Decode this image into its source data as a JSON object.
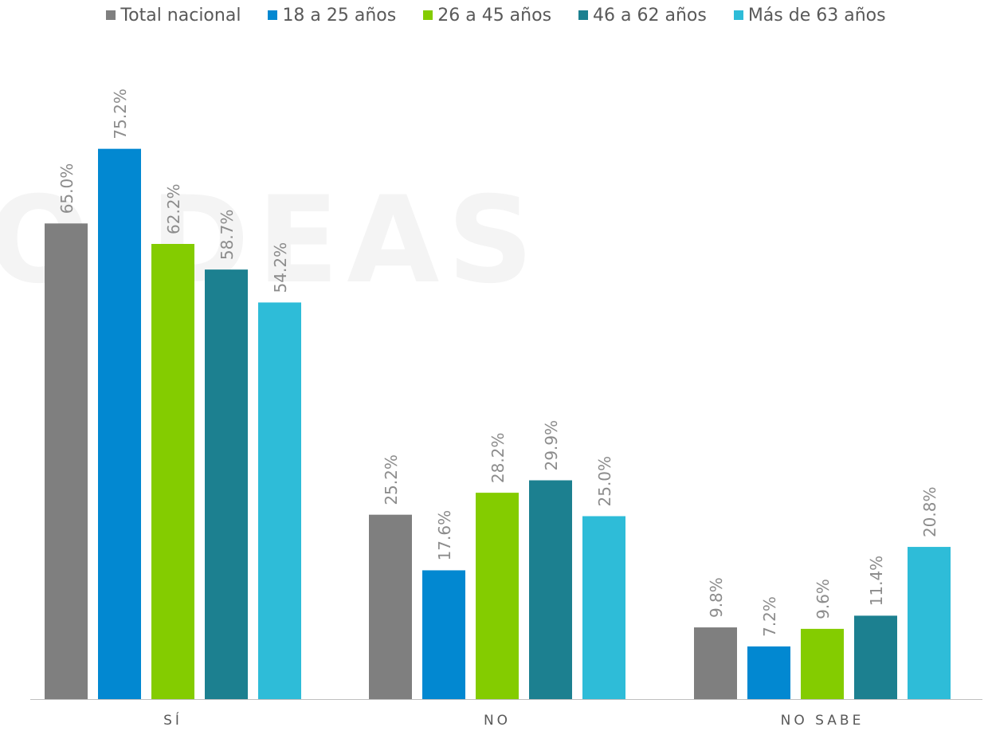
{
  "watermark_text": "OIDEAS",
  "colors": {
    "axis": "#bfbfbf",
    "label": "#8c8c8c",
    "category_label": "#595959"
  },
  "chart_data": {
    "type": "bar",
    "categories": [
      "SÍ",
      "NO",
      "NO SABE"
    ],
    "series": [
      {
        "name": "Total nacional",
        "color": "#7f7f7f",
        "values": [
          65.0,
          25.2,
          9.8
        ],
        "labels": [
          "65.0%",
          "25.2%",
          "9.8%"
        ]
      },
      {
        "name": "18 a 25 años",
        "color": "#0288d1",
        "values": [
          75.2,
          17.6,
          7.2
        ],
        "labels": [
          "75.2%",
          "17.6%",
          "7.2%"
        ]
      },
      {
        "name": "26 a 45 años",
        "color": "#84cc00",
        "values": [
          62.2,
          28.2,
          9.6
        ],
        "labels": [
          "62.2%",
          "28.2%",
          "9.6%"
        ]
      },
      {
        "name": "46 a 62 años",
        "color": "#1c8090",
        "values": [
          58.7,
          29.9,
          11.4
        ],
        "labels": [
          "58.7%",
          "29.9%",
          "11.4%"
        ]
      },
      {
        "name": "Más de 63 años",
        "color": "#2ebcd8",
        "values": [
          54.2,
          25.0,
          20.8
        ],
        "labels": [
          "54.2%",
          "25.0%",
          "20.8%"
        ]
      }
    ],
    "title": "",
    "xlabel": "",
    "ylabel": "",
    "ylim": [
      0,
      80
    ],
    "grid": false,
    "legend_position": "top"
  }
}
